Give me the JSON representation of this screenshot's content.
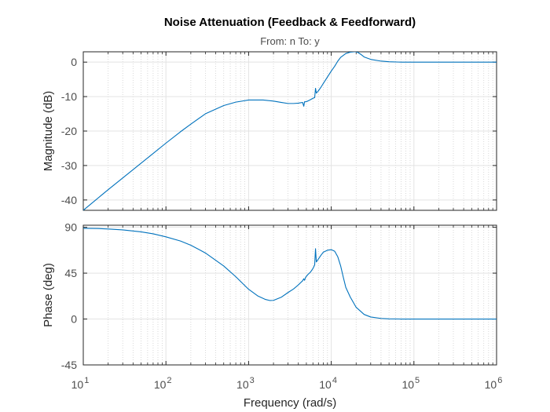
{
  "chart_data": {
    "type": "line",
    "title": "Noise Attenuation (Feedback & Feedforward)",
    "subtitle": "From: n  To: y",
    "xlabel": "Frequency  (rad/s)",
    "xscale": "log",
    "xlim": [
      10,
      1000000
    ],
    "x_ticks": [
      {
        "value": 10,
        "base": "10",
        "exp": "1"
      },
      {
        "value": 100,
        "base": "10",
        "exp": "2"
      },
      {
        "value": 1000,
        "base": "10",
        "exp": "3"
      },
      {
        "value": 10000,
        "base": "10",
        "exp": "4"
      },
      {
        "value": 100000,
        "base": "10",
        "exp": "5"
      },
      {
        "value": 1000000,
        "base": "10",
        "exp": "6"
      }
    ],
    "grid": true,
    "line_color": "#0072bd",
    "panels": [
      {
        "id": "magnitude",
        "ylabel": "Magnitude (dB)",
        "ylim": [
          -43,
          3
        ],
        "y_ticks": [
          {
            "value": 0,
            "label": "0"
          },
          {
            "value": -10,
            "label": "-10"
          },
          {
            "value": -20,
            "label": "-20"
          },
          {
            "value": -30,
            "label": "-30"
          },
          {
            "value": -40,
            "label": "-40"
          }
        ],
        "series": [
          {
            "x": [
              10,
              20,
              40,
              70,
              100,
              150,
              200,
              300,
              500,
              700,
              1000,
              1500,
              2000,
              2500,
              3000,
              3500,
              4000,
              4500,
              4650,
              4750,
              4900,
              5200,
              5600,
              6000,
              6300,
              6450,
              6600,
              7000,
              7500,
              8000,
              9000,
              10000,
              11000,
              12000,
              13000,
              15000,
              17000,
              19000,
              20000,
              21000,
              23000,
              25000,
              30000,
              40000,
              50000,
              70000,
              100000,
              200000,
              500000,
              1000000
            ],
            "y": [
              -43,
              -37,
              -31.2,
              -26.5,
              -23.5,
              -20.2,
              -18,
              -15,
              -12.6,
              -11.6,
              -11.0,
              -11.0,
              -11.3,
              -11.7,
              -12.0,
              -12.0,
              -11.9,
              -11.7,
              -12.8,
              -11.5,
              -11.5,
              -11.3,
              -10.9,
              -10.5,
              -10.3,
              -7.6,
              -9.0,
              -8.3,
              -7.3,
              -6.2,
              -4.3,
              -2.6,
              -1.2,
              0.3,
              1.4,
              2.5,
              2.9,
              3.0,
              3.0,
              2.8,
              2.2,
              1.5,
              0.8,
              0.3,
              0.1,
              0.0,
              0.0,
              0.0,
              0.0,
              0.0
            ]
          }
        ]
      },
      {
        "id": "phase",
        "ylabel": "Phase (deg)",
        "ylim": [
          -45,
          92
        ],
        "y_ticks": [
          {
            "value": 90,
            "label": "90"
          },
          {
            "value": 45,
            "label": "45"
          },
          {
            "value": 0,
            "label": "0"
          },
          {
            "value": -45,
            "label": "-45"
          }
        ],
        "series": [
          {
            "x": [
              10,
              15,
              20,
              30,
              50,
              70,
              100,
              150,
              200,
              300,
              500,
              700,
              1000,
              1300,
              1600,
              1800,
              2000,
              2500,
              3000,
              3500,
              4000,
              4500,
              4650,
              4750,
              4900,
              5200,
              5600,
              6000,
              6300,
              6450,
              6600,
              7000,
              7500,
              8000,
              9000,
              10000,
              11000,
              12000,
              13000,
              14000,
              15000,
              17000,
              20000,
              25000,
              30000,
              40000,
              50000,
              70000,
              100000,
              200000,
              500000,
              1000000
            ],
            "y": [
              89.0,
              88.8,
              88.3,
              87.4,
              85.5,
              83.6,
              80.6,
              76.5,
              72.4,
              64.8,
              52,
              41.5,
              29.2,
              22.5,
              19.2,
              18.2,
              18.3,
              21.5,
              26,
              29.5,
              33.5,
              37.5,
              39.5,
              38,
              41,
              43.5,
              46,
              49.5,
              53,
              69,
              56,
              59,
              62.5,
              65.5,
              67.5,
              68,
              66.5,
              61,
              52,
              40.8,
              31,
              21.5,
              11.5,
              4.5,
              2.0,
              0.6,
              0.2,
              0.0,
              0.0,
              0.0,
              0.0,
              0.0
            ]
          }
        ]
      }
    ]
  }
}
